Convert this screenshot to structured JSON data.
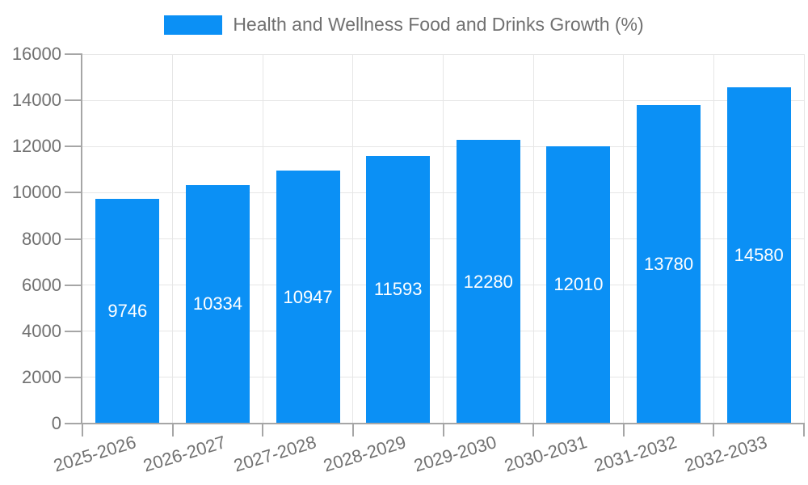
{
  "chart_data": {
    "type": "bar",
    "title": "Health and Wellness Food and Drinks Growth (%)",
    "legend": {
      "label": "Health and Wellness Food and Drinks Growth (%)",
      "position": "top-center"
    },
    "categories": [
      "2025-2026",
      "2026-2027",
      "2027-2028",
      "2028-2029",
      "2029-2030",
      "2030-2031",
      "2031-2032",
      "2032-2033"
    ],
    "values": [
      9746,
      10334,
      10947,
      11593,
      12280,
      12010,
      13780,
      14580
    ],
    "xlabel": "",
    "ylabel": "",
    "ylim": [
      0,
      16000
    ],
    "y_ticks": [
      0,
      2000,
      4000,
      6000,
      8000,
      10000,
      12000,
      14000,
      16000
    ],
    "grid": "horizontal-and-vertical",
    "value_labels": "inside-bars-centered",
    "x_label_rotation_deg": -17,
    "colors": {
      "bar": "#0B90F5",
      "grid": "#e6e6e6",
      "axis": "#a6a6a6",
      "text": "#717171",
      "value_label": "#ffffff"
    }
  }
}
